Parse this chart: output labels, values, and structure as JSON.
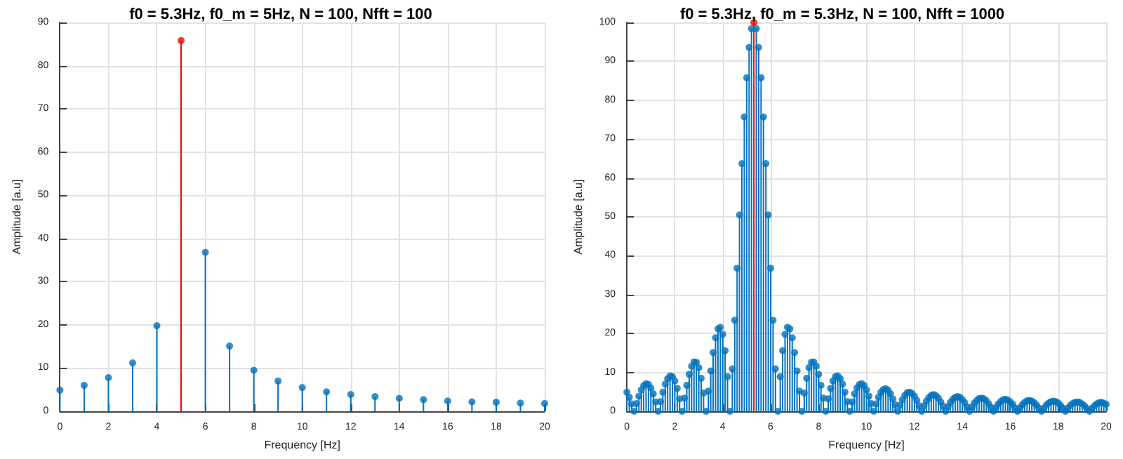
{
  "chart_data": [
    {
      "type": "lollipop",
      "title": "f0 = 5.3Hz, f0_m = 5Hz, N = 100, Nfft = 100",
      "xlabel": "Frequency [Hz]",
      "ylabel": "Amplitude [a.u]",
      "marker": "circle",
      "grid": true,
      "x": [
        0,
        1,
        2,
        3,
        4,
        5,
        6,
        7,
        8,
        9,
        10,
        11,
        12,
        13,
        14,
        15,
        16,
        17,
        18,
        19,
        20
      ],
      "values": [
        4.9,
        6.0,
        7.8,
        11.2,
        19.8,
        85.8,
        36.8,
        15.1,
        9.5,
        7.0,
        5.5,
        4.5,
        3.9,
        3.4,
        3.0,
        2.7,
        2.4,
        2.2,
        2.1,
        1.9,
        1.8
      ],
      "colors": [
        "#0072bd",
        "#0072bd",
        "#0072bd",
        "#0072bd",
        "#0072bd",
        "#ff0000",
        "#0072bd",
        "#0072bd",
        "#0072bd",
        "#0072bd",
        "#0072bd",
        "#0072bd",
        "#0072bd",
        "#0072bd",
        "#0072bd",
        "#0072bd",
        "#0072bd",
        "#0072bd",
        "#0072bd",
        "#0072bd",
        "#0072bd"
      ],
      "xlim": [
        0,
        20
      ],
      "xticks": [
        0,
        2,
        4,
        6,
        8,
        10,
        12,
        14,
        16,
        18,
        20
      ],
      "ylim": [
        0,
        90
      ],
      "yticks": [
        0,
        10,
        20,
        30,
        40,
        50,
        60,
        70,
        80,
        90
      ]
    },
    {
      "type": "lollipop",
      "title": "f0 = 5.3Hz, f0_m = 5.3Hz, N = 100, Nfft = 1000",
      "xlabel": "Frequency [Hz]",
      "ylabel": "Amplitude [a.u]",
      "marker": "circle",
      "grid": true,
      "x": [
        0,
        0.1,
        0.2,
        0.3,
        0.4,
        0.5,
        0.6,
        0.7,
        0.8,
        0.9,
        1,
        1.1,
        1.2,
        1.3,
        1.4,
        1.5,
        1.6,
        1.7,
        1.8,
        1.9,
        2,
        2.1,
        2.2,
        2.3,
        2.4,
        2.5,
        2.6,
        2.7,
        2.8,
        2.9,
        3,
        3.1,
        3.2,
        3.3,
        3.4,
        3.5,
        3.6,
        3.7,
        3.8,
        3.9,
        4,
        4.1,
        4.2,
        4.3,
        4.4,
        4.5,
        4.6,
        4.7,
        4.8,
        4.9,
        5,
        5.1,
        5.2,
        5.3,
        5.4,
        5.5,
        5.6,
        5.7,
        5.8,
        5.9,
        6,
        6.1,
        6.2,
        6.3,
        6.4,
        6.5,
        6.6,
        6.7,
        6.8,
        6.9,
        7,
        7.1,
        7.2,
        7.3,
        7.4,
        7.5,
        7.6,
        7.7,
        7.8,
        7.9,
        8,
        8.1,
        8.2,
        8.3,
        8.4,
        8.5,
        8.6,
        8.7,
        8.8,
        8.9,
        9,
        9.1,
        9.2,
        9.3,
        9.4,
        9.5,
        9.6,
        9.7,
        9.8,
        9.9,
        10,
        10.1,
        10.2,
        10.3,
        10.4,
        10.5,
        10.6,
        10.7,
        10.8,
        10.9,
        11,
        11.1,
        11.2,
        11.3,
        11.4,
        11.5,
        11.6,
        11.7,
        11.8,
        11.9,
        12,
        12.1,
        12.2,
        12.3,
        12.4,
        12.5,
        12.6,
        12.7,
        12.8,
        12.9,
        13,
        13.1,
        13.2,
        13.3,
        13.4,
        13.5,
        13.6,
        13.7,
        13.8,
        13.9,
        14,
        14.1,
        14.2,
        14.3,
        14.4,
        14.5,
        14.6,
        14.7,
        14.8,
        14.9,
        15,
        15.1,
        15.2,
        15.3,
        15.4,
        15.5,
        15.6,
        15.7,
        15.8,
        15.9,
        16,
        16.1,
        16.2,
        16.3,
        16.4,
        16.5,
        16.6,
        16.7,
        16.8,
        16.9,
        17,
        17.1,
        17.2,
        17.3,
        17.4,
        17.5,
        17.6,
        17.7,
        17.8,
        17.9,
        18,
        18.1,
        18.2,
        18.3,
        18.4,
        18.5,
        18.6,
        18.7,
        18.8,
        18.9,
        19,
        19.1,
        19.2,
        19.3,
        19.4,
        19.5,
        19.6,
        19.7,
        19.8,
        19.9,
        20
      ],
      "values": [
        4.9,
        3.6,
        1.9,
        0,
        2.0,
        3.9,
        5.5,
        6.6,
        7.1,
        6.9,
        6.0,
        4.5,
        2.4,
        0,
        2.5,
        4.9,
        7.0,
        8.4,
        9.1,
        8.9,
        7.8,
        5.9,
        3.2,
        0,
        3.4,
        6.7,
        9.5,
        11.6,
        12.7,
        12.6,
        11.2,
        8.5,
        4.7,
        0,
        5.2,
        10.4,
        15.1,
        18.9,
        21.2,
        21.6,
        19.8,
        15.6,
        8.9,
        0,
        10.9,
        23.4,
        36.8,
        50.5,
        63.7,
        75.7,
        85.8,
        93.6,
        98.4,
        100,
        98.4,
        93.6,
        85.8,
        75.7,
        63.7,
        50.5,
        36.8,
        23.4,
        10.9,
        0,
        8.9,
        15.6,
        19.8,
        21.6,
        21.2,
        18.9,
        15.1,
        10.4,
        5.2,
        0,
        4.7,
        8.5,
        11.2,
        12.6,
        12.7,
        11.6,
        9.5,
        6.7,
        3.4,
        0,
        3.2,
        5.9,
        7.8,
        8.9,
        9.1,
        8.4,
        7.0,
        4.9,
        2.5,
        0,
        2.4,
        4.5,
        6.0,
        6.9,
        7.1,
        6.6,
        5.5,
        3.9,
        2.0,
        0,
        1.9,
        3.6,
        4.9,
        5.6,
        5.8,
        5.4,
        4.5,
        3.2,
        1.7,
        0,
        1.6,
        3.0,
        4.1,
        4.8,
        4.9,
        4.6,
        3.9,
        2.8,
        1.4,
        0,
        1.4,
        2.6,
        3.5,
        4.1,
        4.3,
        4.0,
        3.4,
        2.4,
        1.3,
        0,
        1.2,
        2.3,
        3.1,
        3.6,
        3.8,
        3.6,
        3.0,
        2.2,
        1.1,
        0,
        1.1,
        2.1,
        2.8,
        3.3,
        3.4,
        3.2,
        2.7,
        1.9,
        1.0,
        0,
        1.0,
        1.9,
        2.5,
        3.0,
        3.1,
        2.9,
        2.4,
        1.8,
        0.9,
        0,
        0.9,
        1.7,
        2.3,
        2.7,
        2.8,
        2.6,
        2.2,
        1.6,
        0.8,
        0,
        0.8,
        1.6,
        2.1,
        2.5,
        2.6,
        2.5,
        2.1,
        1.5,
        0.8,
        0,
        0.8,
        1.5,
        2.0,
        2.3,
        2.4,
        2.3,
        1.9,
        1.4,
        0.7,
        0,
        0.7,
        1.4,
        1.9,
        2.2,
        2.3,
        2.1,
        1.8
      ],
      "colors": [
        "#0072bd",
        "#0072bd",
        "#0072bd",
        "#0072bd",
        "#0072bd",
        "#0072bd",
        "#0072bd",
        "#0072bd",
        "#0072bd",
        "#0072bd",
        "#0072bd",
        "#0072bd",
        "#0072bd",
        "#0072bd",
        "#0072bd",
        "#0072bd",
        "#0072bd",
        "#0072bd",
        "#0072bd",
        "#0072bd",
        "#0072bd",
        "#0072bd",
        "#0072bd",
        "#0072bd",
        "#0072bd",
        "#0072bd",
        "#0072bd",
        "#0072bd",
        "#0072bd",
        "#0072bd",
        "#0072bd",
        "#0072bd",
        "#0072bd",
        "#0072bd",
        "#0072bd",
        "#0072bd",
        "#0072bd",
        "#0072bd",
        "#0072bd",
        "#0072bd",
        "#0072bd",
        "#0072bd",
        "#0072bd",
        "#0072bd",
        "#0072bd",
        "#0072bd",
        "#0072bd",
        "#0072bd",
        "#0072bd",
        "#0072bd",
        "#0072bd",
        "#0072bd",
        "#0072bd",
        "#ff0000",
        "#0072bd",
        "#0072bd",
        "#0072bd",
        "#0072bd",
        "#0072bd",
        "#0072bd",
        "#0072bd",
        "#0072bd",
        "#0072bd",
        "#0072bd",
        "#0072bd",
        "#0072bd",
        "#0072bd",
        "#0072bd",
        "#0072bd",
        "#0072bd",
        "#0072bd",
        "#0072bd",
        "#0072bd",
        "#0072bd",
        "#0072bd",
        "#0072bd",
        "#0072bd",
        "#0072bd",
        "#0072bd",
        "#0072bd",
        "#0072bd",
        "#0072bd",
        "#0072bd",
        "#0072bd",
        "#0072bd",
        "#0072bd",
        "#0072bd",
        "#0072bd",
        "#0072bd",
        "#0072bd",
        "#0072bd",
        "#0072bd",
        "#0072bd",
        "#0072bd",
        "#0072bd",
        "#0072bd",
        "#0072bd",
        "#0072bd",
        "#0072bd",
        "#0072bd",
        "#0072bd",
        "#0072bd",
        "#0072bd",
        "#0072bd",
        "#0072bd",
        "#0072bd",
        "#0072bd",
        "#0072bd",
        "#0072bd",
        "#0072bd",
        "#0072bd",
        "#0072bd",
        "#0072bd",
        "#0072bd",
        "#0072bd",
        "#0072bd",
        "#0072bd",
        "#0072bd",
        "#0072bd",
        "#0072bd",
        "#0072bd",
        "#0072bd",
        "#0072bd",
        "#0072bd",
        "#0072bd",
        "#0072bd",
        "#0072bd",
        "#0072bd",
        "#0072bd",
        "#0072bd",
        "#0072bd",
        "#0072bd",
        "#0072bd",
        "#0072bd",
        "#0072bd",
        "#0072bd",
        "#0072bd",
        "#0072bd",
        "#0072bd",
        "#0072bd",
        "#0072bd",
        "#0072bd",
        "#0072bd",
        "#0072bd",
        "#0072bd",
        "#0072bd",
        "#0072bd",
        "#0072bd",
        "#0072bd",
        "#0072bd",
        "#0072bd",
        "#0072bd",
        "#0072bd",
        "#0072bd",
        "#0072bd",
        "#0072bd",
        "#0072bd",
        "#0072bd",
        "#0072bd",
        "#0072bd",
        "#0072bd",
        "#0072bd",
        "#0072bd",
        "#0072bd",
        "#0072bd",
        "#0072bd",
        "#0072bd",
        "#0072bd",
        "#0072bd",
        "#0072bd",
        "#0072bd",
        "#0072bd",
        "#0072bd",
        "#0072bd",
        "#0072bd",
        "#0072bd",
        "#0072bd",
        "#0072bd",
        "#0072bd",
        "#0072bd",
        "#0072bd",
        "#0072bd",
        "#0072bd",
        "#0072bd",
        "#0072bd",
        "#0072bd",
        "#0072bd",
        "#0072bd",
        "#0072bd",
        "#0072bd",
        "#0072bd",
        "#0072bd",
        "#0072bd",
        "#0072bd",
        "#0072bd",
        "#0072bd",
        "#0072bd",
        "#0072bd",
        "#0072bd",
        "#0072bd",
        "#0072bd"
      ],
      "xlim": [
        0,
        20
      ],
      "xticks": [
        0,
        2,
        4,
        6,
        8,
        10,
        12,
        14,
        16,
        18,
        20
      ],
      "ylim": [
        0,
        100
      ],
      "yticks": [
        0,
        10,
        20,
        30,
        40,
        50,
        60,
        70,
        80,
        90,
        100
      ]
    }
  ]
}
